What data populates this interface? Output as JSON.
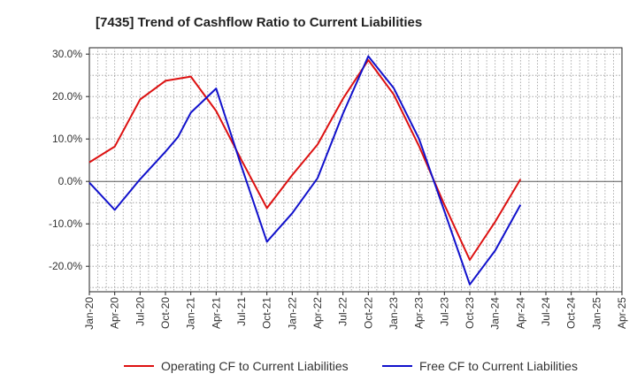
{
  "chart_data": {
    "type": "line",
    "title": "[7435]  Trend of Cashflow Ratio to Current Liabilities",
    "xlabel": "",
    "ylabel": "",
    "x_ticks": [
      "Jan-20",
      "Apr-20",
      "Jul-20",
      "Oct-20",
      "Jan-21",
      "Apr-21",
      "Jul-21",
      "Oct-21",
      "Jan-22",
      "Apr-22",
      "Jul-22",
      "Oct-22",
      "Jan-23",
      "Apr-23",
      "Jul-23",
      "Oct-23",
      "Jan-24",
      "Apr-24",
      "Jul-24",
      "Oct-24",
      "Jan-25",
      "Apr-25"
    ],
    "y_ticks": [
      "30.0%",
      "20.0%",
      "10.0%",
      "0.0%",
      "-10.0%",
      "-20.0%"
    ],
    "y_tick_values": [
      30,
      20,
      10,
      0,
      -10,
      -20
    ],
    "ylim": [
      -26,
      31.5
    ],
    "grid": true,
    "legend_position": "bottom",
    "series": [
      {
        "name": "Operating CF to Current Liabilities",
        "color": "#dd1111",
        "points": [
          [
            0,
            4.5
          ],
          [
            1,
            8.2
          ],
          [
            2,
            19.3
          ],
          [
            3,
            23.7
          ],
          [
            4,
            24.7
          ],
          [
            5,
            16.6
          ],
          [
            6,
            5.0
          ],
          [
            7,
            -6.3
          ],
          [
            8,
            1.5
          ],
          [
            9,
            8.7
          ],
          [
            10,
            19.5
          ],
          [
            11,
            28.6
          ],
          [
            12,
            20.5
          ],
          [
            13,
            8.3
          ],
          [
            14,
            -5.5
          ],
          [
            15,
            -18.5
          ],
          [
            16,
            -9.5
          ],
          [
            17,
            0.5
          ]
        ]
      },
      {
        "name": "Free CF to Current Liabilities",
        "color": "#1111cc",
        "points": [
          [
            0,
            -0.3
          ],
          [
            1,
            -6.7
          ],
          [
            2,
            0.5
          ],
          [
            3,
            7.0
          ],
          [
            3.5,
            10.5
          ],
          [
            4,
            16.2
          ],
          [
            5,
            21.9
          ],
          [
            6,
            3.5
          ],
          [
            7,
            -14.2
          ],
          [
            8,
            -7.5
          ],
          [
            9,
            0.8
          ],
          [
            10,
            16.0
          ],
          [
            11,
            29.5
          ],
          [
            12,
            22.0
          ],
          [
            13,
            10.0
          ],
          [
            14,
            -7.0
          ],
          [
            15,
            -24.3
          ],
          [
            16,
            -16.3
          ],
          [
            17,
            -5.5
          ]
        ]
      }
    ]
  }
}
